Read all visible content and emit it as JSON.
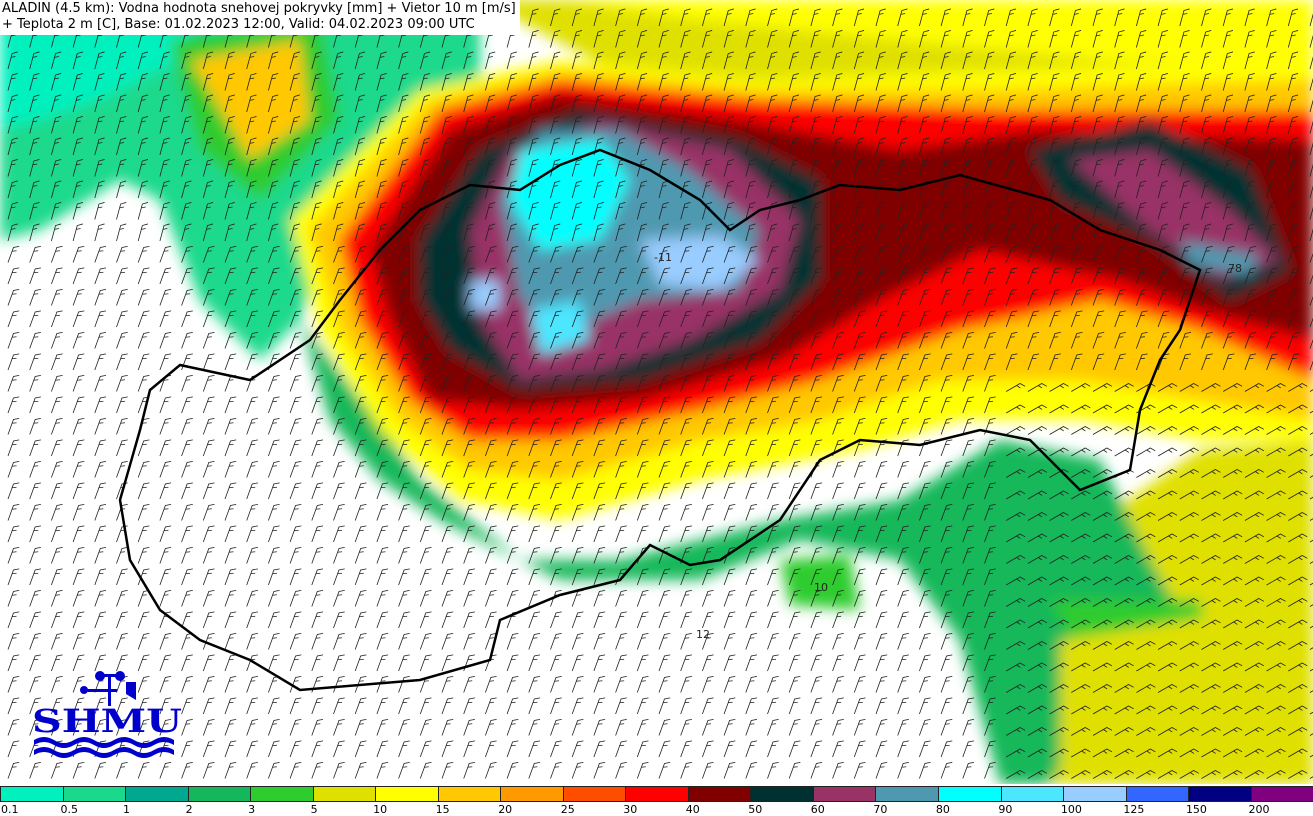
{
  "title": {
    "line1": "ALADIN (4.5 km): Vodna hodnota snehovej pokryvky [mm] + Vietor 10 m [m/s]",
    "line2": "+ Teplota 2 m [C], Base: 01.02.2023 12:00, Valid: 04.02.2023 09:00 UTC"
  },
  "logo": {
    "text": "SHMU",
    "color": "#0000CC"
  },
  "legend": {
    "items": [
      {
        "label": "0.1",
        "color": "#00F0BE"
      },
      {
        "label": "0.5",
        "color": "#1AD98C"
      },
      {
        "label": "1",
        "color": "#00A890"
      },
      {
        "label": "2",
        "color": "#14B85A"
      },
      {
        "label": "3",
        "color": "#2ECC2E"
      },
      {
        "label": "5",
        "color": "#E0E000"
      },
      {
        "label": "10",
        "color": "#FFFF00"
      },
      {
        "label": "15",
        "color": "#FFC800"
      },
      {
        "label": "20",
        "color": "#FF9900"
      },
      {
        "label": "25",
        "color": "#FF4D00"
      },
      {
        "label": "30",
        "color": "#FF0000"
      },
      {
        "label": "40",
        "color": "#800000"
      },
      {
        "label": "50",
        "color": "#003030"
      },
      {
        "label": "60",
        "color": "#993366"
      },
      {
        "label": "70",
        "color": "#4F99B0"
      },
      {
        "label": "80",
        "color": "#00FFFF"
      },
      {
        "label": "90",
        "color": "#4DE6FF"
      },
      {
        "label": "100",
        "color": "#99CCFF"
      },
      {
        "label": "125",
        "color": "#3366FF"
      },
      {
        "label": "150",
        "color": "#000080"
      },
      {
        "label": "200",
        "color": "#800080"
      }
    ]
  },
  "peaks": [
    {
      "label": "10"
    },
    {
      "label": "12"
    },
    {
      "label": "78"
    },
    {
      "label": "-11"
    }
  ]
}
